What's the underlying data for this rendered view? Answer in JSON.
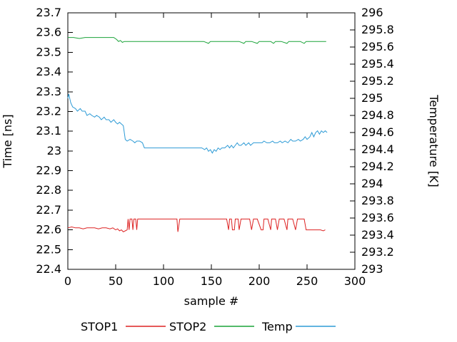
{
  "chart_data": {
    "type": "line",
    "title": "",
    "xlabel": "sample #",
    "ylabel_left": "Time [ns]",
    "ylabel_right": "Temperature [K]",
    "x_range": [
      0,
      300
    ],
    "x_ticks": [
      "0",
      "50",
      "100",
      "150",
      "200",
      "250",
      "300"
    ],
    "y_left_range": [
      22.4,
      23.7
    ],
    "y_left_ticks": [
      "22.4",
      "22.5",
      "22.6",
      "22.7",
      "22.8",
      "22.9",
      "23",
      "23.1",
      "23.2",
      "23.3",
      "23.4",
      "23.5",
      "23.6",
      "23.7"
    ],
    "y_right_range": [
      293,
      296
    ],
    "y_right_ticks": [
      "293",
      "293.2",
      "293.4",
      "293.6",
      "293.8",
      "294",
      "294.2",
      "294.4",
      "294.6",
      "294.8",
      "295",
      "295.2",
      "295.4",
      "295.6",
      "295.8",
      "296"
    ],
    "grid": false,
    "legend_position": "bottom",
    "series": [
      {
        "name": "STOP1",
        "axis": "left",
        "color": "#dd2222",
        "points": [
          [
            0,
            22.61
          ],
          [
            4,
            22.615
          ],
          [
            8,
            22.61
          ],
          [
            12,
            22.61
          ],
          [
            16,
            22.605
          ],
          [
            20,
            22.61
          ],
          [
            24,
            22.61
          ],
          [
            28,
            22.61
          ],
          [
            32,
            22.605
          ],
          [
            36,
            22.61
          ],
          [
            40,
            22.61
          ],
          [
            44,
            22.605
          ],
          [
            47,
            22.61
          ],
          [
            50,
            22.6
          ],
          [
            52,
            22.605
          ],
          [
            54,
            22.595
          ],
          [
            56,
            22.6
          ],
          [
            58,
            22.59
          ],
          [
            60,
            22.595
          ],
          [
            62,
            22.6
          ],
          [
            63,
            22.655
          ],
          [
            64,
            22.6
          ],
          [
            65,
            22.655
          ],
          [
            67,
            22.655
          ],
          [
            68,
            22.6
          ],
          [
            69,
            22.655
          ],
          [
            71,
            22.655
          ],
          [
            72,
            22.6
          ],
          [
            73,
            22.655
          ],
          [
            76,
            22.655
          ],
          [
            80,
            22.655
          ],
          [
            85,
            22.655
          ],
          [
            90,
            22.655
          ],
          [
            95,
            22.655
          ],
          [
            100,
            22.655
          ],
          [
            105,
            22.655
          ],
          [
            110,
            22.655
          ],
          [
            114,
            22.655
          ],
          [
            115,
            22.59
          ],
          [
            117,
            22.655
          ],
          [
            121,
            22.655
          ],
          [
            126,
            22.655
          ],
          [
            131,
            22.655
          ],
          [
            136,
            22.655
          ],
          [
            141,
            22.655
          ],
          [
            146,
            22.655
          ],
          [
            151,
            22.655
          ],
          [
            156,
            22.655
          ],
          [
            161,
            22.655
          ],
          [
            166,
            22.655
          ],
          [
            168,
            22.6
          ],
          [
            169,
            22.655
          ],
          [
            171,
            22.655
          ],
          [
            172,
            22.6
          ],
          [
            174,
            22.6
          ],
          [
            175,
            22.655
          ],
          [
            178,
            22.655
          ],
          [
            179,
            22.6
          ],
          [
            181,
            22.655
          ],
          [
            185,
            22.655
          ],
          [
            190,
            22.655
          ],
          [
            192,
            22.6
          ],
          [
            194,
            22.655
          ],
          [
            198,
            22.655
          ],
          [
            202,
            22.6
          ],
          [
            204,
            22.6
          ],
          [
            205,
            22.655
          ],
          [
            209,
            22.655
          ],
          [
            212,
            22.6
          ],
          [
            213,
            22.655
          ],
          [
            217,
            22.655
          ],
          [
            219,
            22.6
          ],
          [
            221,
            22.655
          ],
          [
            226,
            22.655
          ],
          [
            229,
            22.6
          ],
          [
            230,
            22.655
          ],
          [
            235,
            22.655
          ],
          [
            238,
            22.6
          ],
          [
            240,
            22.655
          ],
          [
            244,
            22.655
          ],
          [
            247,
            22.655
          ],
          [
            249,
            22.6
          ],
          [
            252,
            22.6
          ],
          [
            256,
            22.6
          ],
          [
            260,
            22.6
          ],
          [
            264,
            22.6
          ],
          [
            267,
            22.595
          ],
          [
            269,
            22.6
          ]
        ]
      },
      {
        "name": "STOP2",
        "axis": "left",
        "color": "#1aa339",
        "points": [
          [
            0,
            23.575
          ],
          [
            6,
            23.575
          ],
          [
            12,
            23.57
          ],
          [
            18,
            23.575
          ],
          [
            24,
            23.575
          ],
          [
            30,
            23.575
          ],
          [
            36,
            23.575
          ],
          [
            42,
            23.575
          ],
          [
            48,
            23.575
          ],
          [
            51,
            23.565
          ],
          [
            53,
            23.555
          ],
          [
            55,
            23.56
          ],
          [
            57,
            23.55
          ],
          [
            59,
            23.555
          ],
          [
            64,
            23.555
          ],
          [
            70,
            23.555
          ],
          [
            76,
            23.555
          ],
          [
            82,
            23.555
          ],
          [
            88,
            23.555
          ],
          [
            94,
            23.555
          ],
          [
            100,
            23.555
          ],
          [
            106,
            23.555
          ],
          [
            112,
            23.555
          ],
          [
            118,
            23.555
          ],
          [
            124,
            23.555
          ],
          [
            130,
            23.555
          ],
          [
            136,
            23.555
          ],
          [
            142,
            23.555
          ],
          [
            147,
            23.545
          ],
          [
            149,
            23.555
          ],
          [
            155,
            23.555
          ],
          [
            161,
            23.555
          ],
          [
            167,
            23.555
          ],
          [
            173,
            23.555
          ],
          [
            179,
            23.555
          ],
          [
            184,
            23.545
          ],
          [
            186,
            23.555
          ],
          [
            192,
            23.555
          ],
          [
            198,
            23.545
          ],
          [
            200,
            23.555
          ],
          [
            206,
            23.555
          ],
          [
            212,
            23.555
          ],
          [
            215,
            23.545
          ],
          [
            217,
            23.555
          ],
          [
            223,
            23.555
          ],
          [
            229,
            23.545
          ],
          [
            231,
            23.555
          ],
          [
            237,
            23.555
          ],
          [
            243,
            23.555
          ],
          [
            247,
            23.545
          ],
          [
            249,
            23.555
          ],
          [
            255,
            23.555
          ],
          [
            261,
            23.555
          ],
          [
            266,
            23.555
          ],
          [
            270,
            23.555
          ]
        ]
      },
      {
        "name": "Temp",
        "axis": "right",
        "color": "#2e9bd6",
        "points": [
          [
            0,
            295.0
          ],
          [
            1,
            295.05
          ],
          [
            3,
            294.95
          ],
          [
            5,
            294.9
          ],
          [
            8,
            294.88
          ],
          [
            10,
            294.85
          ],
          [
            13,
            294.88
          ],
          [
            15,
            294.85
          ],
          [
            18,
            294.85
          ],
          [
            20,
            294.8
          ],
          [
            23,
            294.82
          ],
          [
            25,
            294.8
          ],
          [
            28,
            294.78
          ],
          [
            30,
            294.8
          ],
          [
            33,
            294.78
          ],
          [
            35,
            294.75
          ],
          [
            38,
            294.78
          ],
          [
            40,
            294.75
          ],
          [
            43,
            294.75
          ],
          [
            45,
            294.72
          ],
          [
            48,
            294.75
          ],
          [
            50,
            294.72
          ],
          [
            52,
            294.7
          ],
          [
            54,
            294.72
          ],
          [
            56,
            294.7
          ],
          [
            58,
            294.68
          ],
          [
            60,
            294.52
          ],
          [
            62,
            294.5
          ],
          [
            65,
            294.52
          ],
          [
            68,
            294.5
          ],
          [
            70,
            294.48
          ],
          [
            72,
            294.5
          ],
          [
            75,
            294.5
          ],
          [
            78,
            294.48
          ],
          [
            80,
            294.42
          ],
          [
            84,
            294.42
          ],
          [
            88,
            294.42
          ],
          [
            92,
            294.42
          ],
          [
            96,
            294.42
          ],
          [
            100,
            294.42
          ],
          [
            104,
            294.42
          ],
          [
            108,
            294.42
          ],
          [
            112,
            294.42
          ],
          [
            116,
            294.42
          ],
          [
            120,
            294.42
          ],
          [
            124,
            294.42
          ],
          [
            128,
            294.42
          ],
          [
            132,
            294.42
          ],
          [
            136,
            294.42
          ],
          [
            140,
            294.42
          ],
          [
            143,
            294.4
          ],
          [
            145,
            294.42
          ],
          [
            147,
            294.38
          ],
          [
            149,
            294.4
          ],
          [
            151,
            294.36
          ],
          [
            153,
            294.4
          ],
          [
            155,
            294.38
          ],
          [
            157,
            294.42
          ],
          [
            159,
            294.4
          ],
          [
            161,
            294.42
          ],
          [
            164,
            294.42
          ],
          [
            167,
            294.45
          ],
          [
            169,
            294.42
          ],
          [
            171,
            294.45
          ],
          [
            173,
            294.42
          ],
          [
            175,
            294.45
          ],
          [
            177,
            294.48
          ],
          [
            179,
            294.45
          ],
          [
            181,
            294.45
          ],
          [
            184,
            294.48
          ],
          [
            186,
            294.45
          ],
          [
            189,
            294.48
          ],
          [
            191,
            294.45
          ],
          [
            194,
            294.48
          ],
          [
            197,
            294.48
          ],
          [
            200,
            294.48
          ],
          [
            203,
            294.48
          ],
          [
            205,
            294.5
          ],
          [
            208,
            294.48
          ],
          [
            211,
            294.48
          ],
          [
            214,
            294.5
          ],
          [
            216,
            294.48
          ],
          [
            219,
            294.48
          ],
          [
            222,
            294.5
          ],
          [
            224,
            294.48
          ],
          [
            227,
            294.5
          ],
          [
            230,
            294.48
          ],
          [
            233,
            294.52
          ],
          [
            235,
            294.5
          ],
          [
            238,
            294.5
          ],
          [
            241,
            294.52
          ],
          [
            243,
            294.5
          ],
          [
            246,
            294.52
          ],
          [
            248,
            294.55
          ],
          [
            250,
            294.52
          ],
          [
            253,
            294.55
          ],
          [
            255,
            294.6
          ],
          [
            257,
            294.55
          ],
          [
            259,
            294.6
          ],
          [
            261,
            294.62
          ],
          [
            263,
            294.58
          ],
          [
            265,
            294.62
          ],
          [
            267,
            294.6
          ],
          [
            269,
            294.62
          ],
          [
            271,
            294.6
          ]
        ]
      }
    ]
  }
}
